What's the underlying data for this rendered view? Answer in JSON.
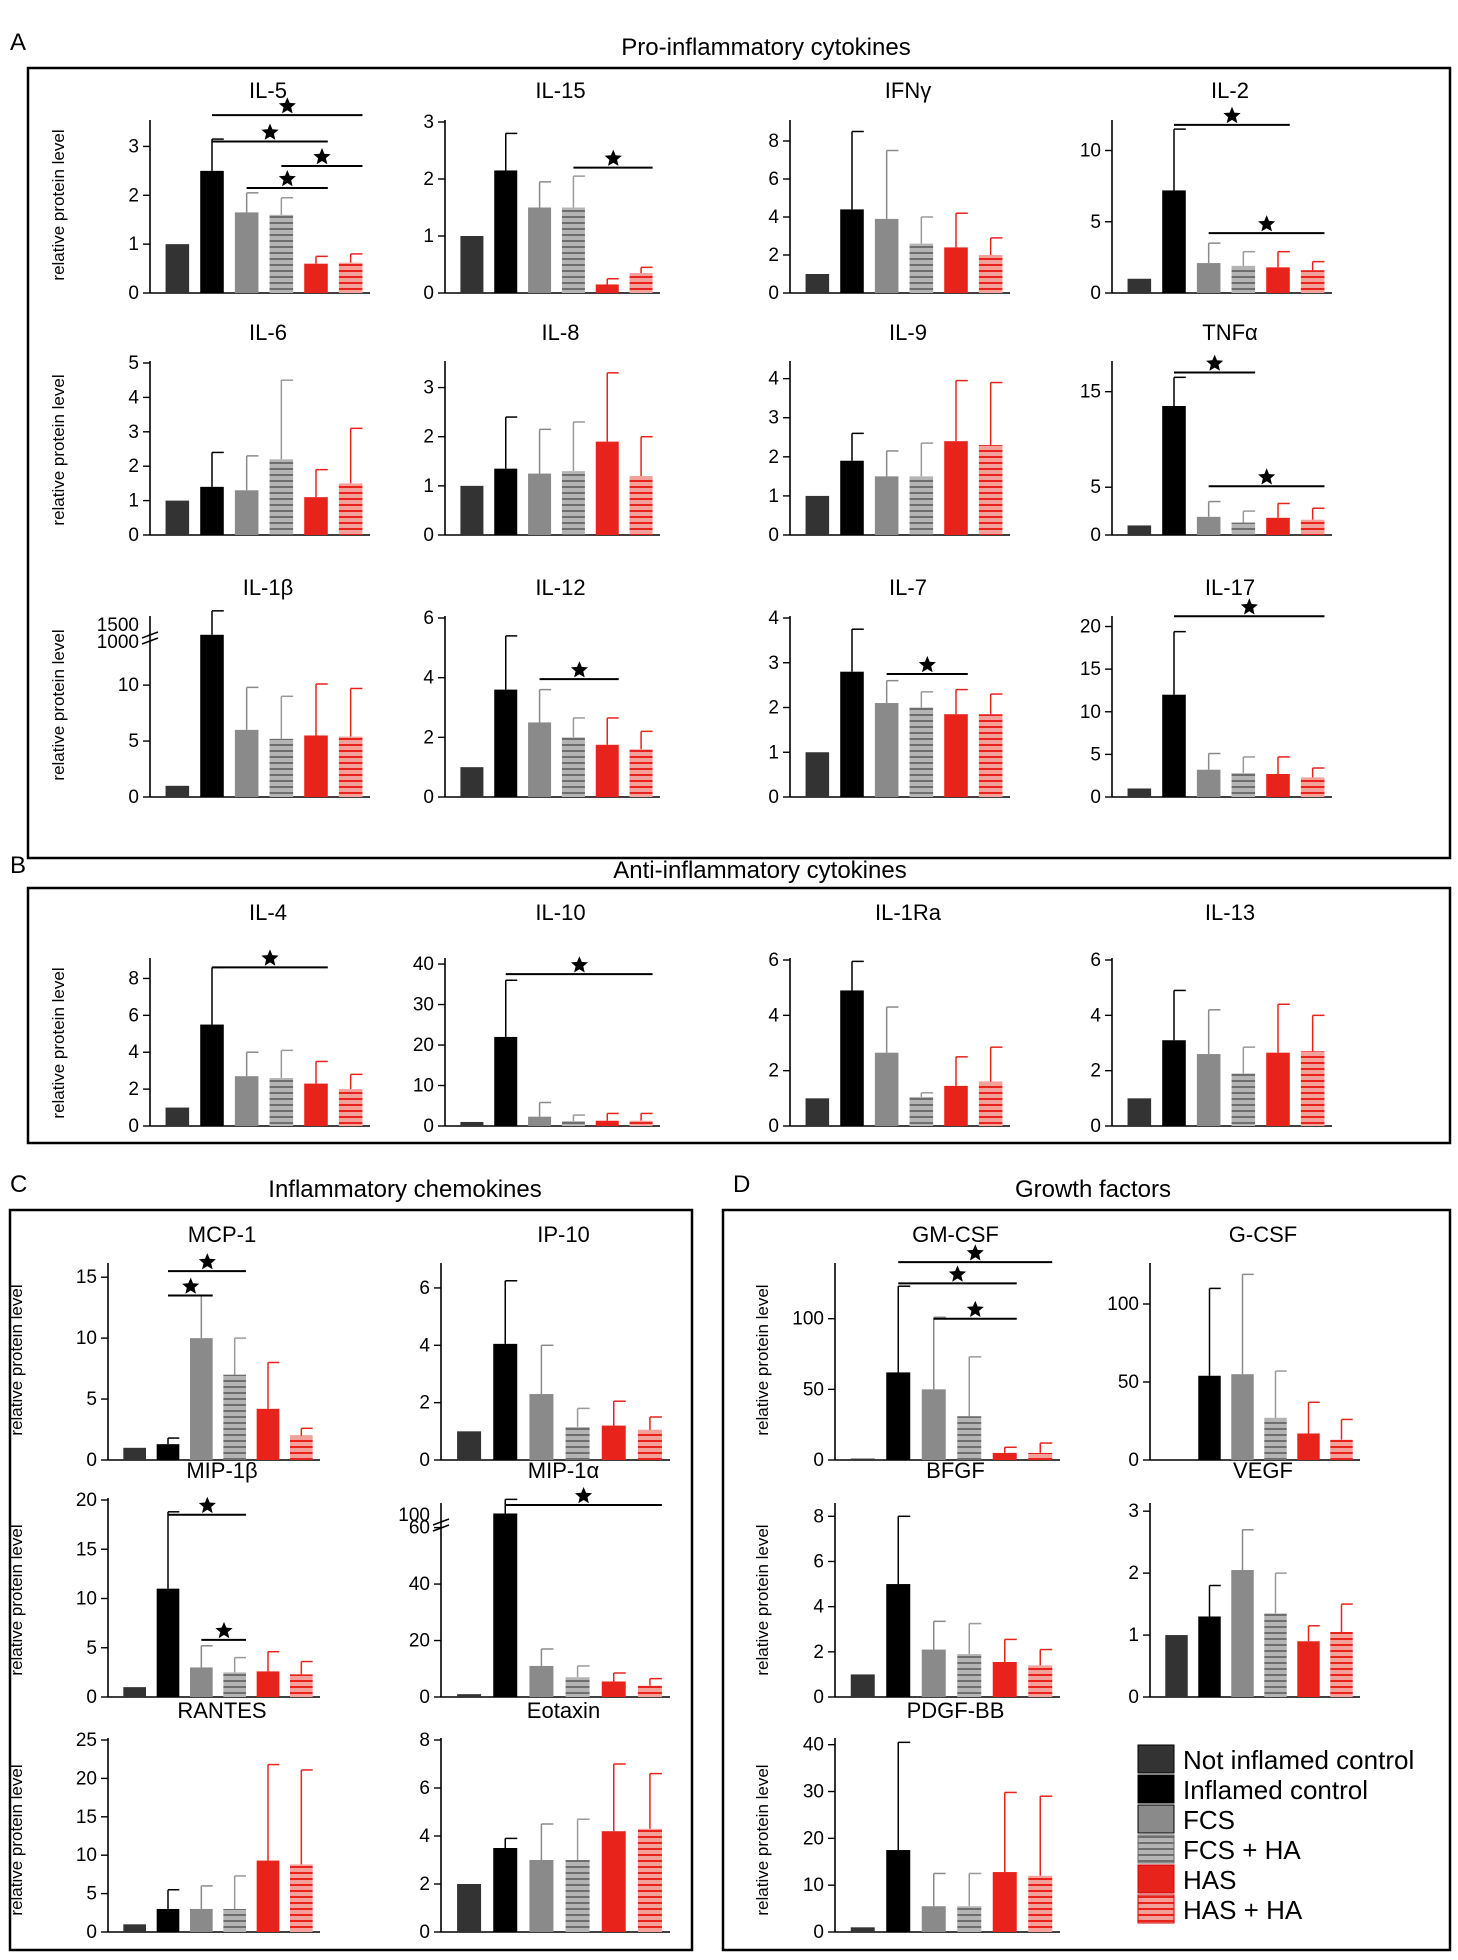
{
  "sections": [
    {
      "letter": "A",
      "title": "Pro-inflammatory cytokines"
    },
    {
      "letter": "B",
      "title": "Anti-inflammatory cytokines"
    },
    {
      "letter": "C",
      "title": "Inflammatory chemokines"
    },
    {
      "letter": "D",
      "title": "Growth factors"
    }
  ],
  "ylabel": "relative protein level",
  "legend": [
    {
      "label": "Not inflamed control",
      "color": "#333333",
      "pattern": "solid"
    },
    {
      "label": "Inflamed control",
      "color": "#000000",
      "pattern": "solid"
    },
    {
      "label": "FCS",
      "color": "#8a8a8a",
      "pattern": "solid"
    },
    {
      "label": "FCS + HA",
      "color": "#9a9a9a",
      "pattern": "striped"
    },
    {
      "label": "HAS",
      "color": "#e8231c",
      "pattern": "solid"
    },
    {
      "label": "HAS + HA",
      "color": "#e8231c",
      "pattern": "striped"
    }
  ],
  "chart_data": [
    {
      "type": "bar",
      "section": "A",
      "title": "IL-5",
      "ylim": [
        0,
        3.5
      ],
      "ticks": [
        0,
        1,
        2,
        3
      ],
      "values": [
        1,
        2.5,
        1.65,
        1.6,
        0.6,
        0.62
      ],
      "errors": [
        0,
        0.65,
        0.4,
        0.35,
        0.15,
        0.18
      ],
      "sig": [
        [
          1,
          4,
          3.1
        ],
        [
          1,
          5,
          3.65
        ],
        [
          2,
          4,
          2.15
        ],
        [
          3,
          5,
          2.6
        ]
      ]
    },
    {
      "type": "bar",
      "section": "A",
      "title": "IL-15",
      "ylim": [
        0,
        3
      ],
      "ticks": [
        0,
        1,
        2,
        3
      ],
      "values": [
        1,
        2.15,
        1.5,
        1.5,
        0.15,
        0.35
      ],
      "errors": [
        0,
        0.65,
        0.45,
        0.55,
        0.1,
        0.1
      ],
      "sig": [
        [
          3,
          5,
          2.2
        ]
      ]
    },
    {
      "type": "bar",
      "section": "A",
      "title": "IFNγ",
      "ylim": [
        0,
        9
      ],
      "ticks": [
        0,
        2,
        4,
        6,
        8
      ],
      "values": [
        1,
        4.4,
        3.9,
        2.6,
        2.4,
        2.0
      ],
      "errors": [
        0,
        4.1,
        3.6,
        1.4,
        1.8,
        0.9
      ],
      "sig": []
    },
    {
      "type": "bar",
      "section": "A",
      "title": "IL-2",
      "ylim": [
        0,
        12
      ],
      "ticks": [
        0,
        5,
        10
      ],
      "values": [
        1,
        7.2,
        2.1,
        1.9,
        1.8,
        1.6
      ],
      "errors": [
        0,
        4.3,
        1.4,
        1.0,
        1.1,
        0.6
      ],
      "sig": [
        [
          1,
          4,
          11.8
        ],
        [
          2,
          5,
          4.2
        ]
      ]
    },
    {
      "type": "bar",
      "section": "A",
      "title": "IL-6",
      "ylim": [
        0,
        5
      ],
      "ticks": [
        0,
        1,
        2,
        3,
        4,
        5
      ],
      "values": [
        1,
        1.4,
        1.3,
        2.2,
        1.1,
        1.5
      ],
      "errors": [
        0,
        1.0,
        1.0,
        2.3,
        0.8,
        1.6
      ],
      "sig": []
    },
    {
      "type": "bar",
      "section": "A",
      "title": "IL-8",
      "ylim": [
        0,
        3.5
      ],
      "ticks": [
        0,
        1,
        2,
        3
      ],
      "values": [
        1,
        1.35,
        1.25,
        1.3,
        1.9,
        1.2
      ],
      "errors": [
        0,
        1.05,
        0.9,
        1.0,
        1.4,
        0.8
      ],
      "sig": []
    },
    {
      "type": "bar",
      "section": "A",
      "title": "IL-9",
      "ylim": [
        0,
        4.4
      ],
      "ticks": [
        0,
        1,
        2,
        3,
        4
      ],
      "values": [
        1,
        1.9,
        1.5,
        1.5,
        2.4,
        2.3
      ],
      "errors": [
        0,
        0.7,
        0.65,
        0.85,
        1.55,
        1.6
      ],
      "sig": []
    },
    {
      "type": "bar",
      "section": "A",
      "title": "TNFα",
      "ylim": [
        0,
        18
      ],
      "ticks": [
        0,
        5,
        15
      ],
      "values": [
        1,
        13.5,
        1.9,
        1.3,
        1.8,
        1.6
      ],
      "errors": [
        0,
        3.0,
        1.6,
        1.2,
        1.5,
        1.2
      ],
      "sig": [
        [
          1,
          3,
          17
        ],
        [
          2,
          5,
          5.1
        ]
      ]
    },
    {
      "type": "bar",
      "section": "A",
      "title": "IL-1β",
      "ylim": [
        0,
        16
      ],
      "ticks": [
        0,
        5,
        10
      ],
      "ticks_break": [
        "1000",
        "1500"
      ],
      "values": [
        1,
        14.5,
        6.0,
        5.2,
        5.5,
        5.4
      ],
      "errors": [
        0,
        2.5,
        3.8,
        3.8,
        4.6,
        4.3
      ],
      "sig": []
    },
    {
      "type": "bar",
      "section": "A",
      "title": "IL-12",
      "ylim": [
        0,
        6
      ],
      "ticks": [
        0,
        2,
        4,
        6
      ],
      "values": [
        1,
        3.6,
        2.5,
        2.0,
        1.75,
        1.6
      ],
      "errors": [
        0,
        1.8,
        1.1,
        0.65,
        0.9,
        0.6
      ],
      "sig": [
        [
          2,
          4,
          3.95
        ]
      ]
    },
    {
      "type": "bar",
      "section": "A",
      "title": "IL-7",
      "ylim": [
        0,
        4
      ],
      "ticks": [
        0,
        1,
        2,
        3,
        4
      ],
      "values": [
        1,
        2.8,
        2.1,
        2.0,
        1.85,
        1.85
      ],
      "errors": [
        0,
        0.95,
        0.5,
        0.35,
        0.55,
        0.45
      ],
      "sig": [
        [
          2,
          4,
          2.75
        ]
      ]
    },
    {
      "type": "bar",
      "section": "A",
      "title": "IL-17",
      "ylim": [
        0,
        21
      ],
      "ticks": [
        0,
        5,
        10,
        15,
        20
      ],
      "values": [
        1,
        12,
        3.2,
        2.8,
        2.7,
        2.3
      ],
      "errors": [
        0,
        7.4,
        1.9,
        1.9,
        2.0,
        1.1
      ],
      "sig": [
        [
          1,
          5,
          21.2
        ]
      ]
    },
    {
      "type": "bar",
      "section": "B",
      "title": "IL-4",
      "ylim": [
        0,
        9
      ],
      "ticks": [
        0,
        2,
        4,
        6,
        8
      ],
      "values": [
        1,
        5.5,
        2.7,
        2.6,
        2.3,
        2.0
      ],
      "errors": [
        0,
        3.1,
        1.3,
        1.5,
        1.2,
        0.8
      ],
      "sig": [
        [
          1,
          4,
          8.6
        ]
      ]
    },
    {
      "type": "bar",
      "section": "B",
      "title": "IL-10",
      "ylim": [
        0,
        41
      ],
      "ticks": [
        0,
        10,
        20,
        30,
        40
      ],
      "values": [
        1,
        22,
        2.3,
        1.2,
        1.3,
        1.3
      ],
      "errors": [
        0,
        14,
        3.5,
        1.5,
        1.8,
        1.8
      ],
      "sig": [
        [
          1,
          5,
          37.5
        ]
      ]
    },
    {
      "type": "bar",
      "section": "B",
      "title": "IL-1Ra",
      "ylim": [
        0,
        6
      ],
      "ticks": [
        0,
        2,
        4,
        6
      ],
      "values": [
        1,
        4.9,
        2.65,
        1.05,
        1.45,
        1.6
      ],
      "errors": [
        0,
        1.05,
        1.65,
        0.15,
        1.05,
        1.25
      ],
      "sig": []
    },
    {
      "type": "bar",
      "section": "B",
      "title": "IL-13",
      "ylim": [
        0,
        6
      ],
      "ticks": [
        0,
        2,
        4,
        6
      ],
      "values": [
        1,
        3.1,
        2.6,
        1.9,
        2.65,
        2.7
      ],
      "errors": [
        0,
        1.8,
        1.6,
        0.95,
        1.75,
        1.3
      ],
      "sig": []
    },
    {
      "type": "bar",
      "section": "C",
      "title": "MCP-1",
      "ylim": [
        0,
        16
      ],
      "ticks": [
        0,
        5,
        10,
        15
      ],
      "values": [
        1,
        1.3,
        10,
        7,
        4.2,
        2.0
      ],
      "errors": [
        0,
        0.5,
        3.5,
        3,
        3.8,
        0.6
      ],
      "sig": [
        [
          1,
          2,
          13.5
        ],
        [
          1,
          3,
          15.5
        ]
      ]
    },
    {
      "type": "bar",
      "section": "C",
      "title": "IP-10",
      "ylim": [
        0,
        6.8
      ],
      "ticks": [
        0,
        2,
        4,
        6
      ],
      "values": [
        1,
        4.05,
        2.3,
        1.15,
        1.2,
        1.05
      ],
      "errors": [
        0,
        2.2,
        1.7,
        0.65,
        0.85,
        0.45
      ],
      "sig": []
    },
    {
      "type": "bar",
      "section": "C",
      "title": "MIP-1β",
      "ylim": [
        0,
        20
      ],
      "ticks": [
        0,
        5,
        10,
        15,
        20
      ],
      "values": [
        1,
        11,
        3,
        2.5,
        2.6,
        2.3
      ],
      "errors": [
        0,
        7.8,
        2.2,
        1.5,
        2.0,
        1.3
      ],
      "sig": [
        [
          1,
          3,
          18.5
        ],
        [
          2,
          3,
          5.8
        ]
      ]
    },
    {
      "type": "bar",
      "section": "C",
      "title": "MIP-1α",
      "ylim": [
        0,
        68
      ],
      "ticks": [
        0,
        20,
        40,
        60
      ],
      "ticks_break": [
        "100"
      ],
      "values": [
        1,
        65,
        11,
        7,
        5.5,
        4
      ],
      "errors": [
        0,
        5,
        6,
        4,
        3,
        2.5
      ],
      "sig": [
        [
          1,
          5,
          68
        ]
      ]
    },
    {
      "type": "bar",
      "section": "C",
      "title": "RANTES",
      "ylim": [
        0,
        25
      ],
      "ticks": [
        0,
        5,
        10,
        15,
        20,
        25
      ],
      "values": [
        1,
        3,
        3,
        3,
        9.3,
        8.8
      ],
      "errors": [
        0,
        2.5,
        3,
        4.3,
        12.5,
        12.3
      ],
      "sig": []
    },
    {
      "type": "bar",
      "section": "C",
      "title": "Eotaxin",
      "ylim": [
        0,
        8
      ],
      "ticks": [
        0,
        2,
        4,
        6,
        8
      ],
      "values": [
        2,
        3.5,
        3,
        3,
        4.2,
        4.3
      ],
      "errors": [
        0,
        0.4,
        1.5,
        1.7,
        2.8,
        2.3
      ],
      "sig": []
    },
    {
      "type": "bar",
      "section": "D",
      "title": "GM-CSF",
      "ylim": [
        0,
        138
      ],
      "ticks": [
        0,
        50,
        100
      ],
      "values": [
        1,
        62,
        50,
        31,
        5,
        5
      ],
      "errors": [
        0,
        61,
        51,
        42,
        4,
        7
      ],
      "sig": [
        [
          1,
          4,
          125
        ],
        [
          1,
          5,
          140
        ],
        [
          2,
          4,
          100
        ]
      ]
    },
    {
      "type": "bar",
      "section": "D",
      "title": "G-CSF",
      "ylim": [
        0,
        125
      ],
      "ticks": [
        0,
        50,
        100
      ],
      "values": [
        0,
        54,
        55,
        27,
        17,
        13
      ],
      "errors": [
        0,
        56,
        64,
        30,
        20,
        13
      ],
      "sig": []
    },
    {
      "type": "bar",
      "section": "D",
      "title": "BFGF",
      "ylim": [
        0,
        8.5
      ],
      "ticks": [
        0,
        2,
        4,
        6,
        8
      ],
      "values": [
        1,
        5,
        2.1,
        1.9,
        1.55,
        1.4
      ],
      "errors": [
        0,
        3,
        1.25,
        1.35,
        1.0,
        0.7
      ],
      "sig": []
    },
    {
      "type": "bar",
      "section": "D",
      "title": "VEGF",
      "ylim": [
        0,
        3.1
      ],
      "ticks": [
        0,
        1,
        2,
        3
      ],
      "values": [
        1,
        1.3,
        2.05,
        1.35,
        0.9,
        1.05
      ],
      "errors": [
        0,
        0.5,
        0.65,
        0.65,
        0.25,
        0.45
      ],
      "sig": []
    },
    {
      "type": "bar",
      "section": "D",
      "title": "PDGF-BB",
      "ylim": [
        0,
        41
      ],
      "ticks": [
        0,
        10,
        20,
        30,
        40
      ],
      "values": [
        1,
        17.5,
        5.5,
        5.5,
        12.8,
        12
      ],
      "errors": [
        0,
        23,
        7,
        7,
        17,
        17
      ],
      "sig": []
    }
  ]
}
